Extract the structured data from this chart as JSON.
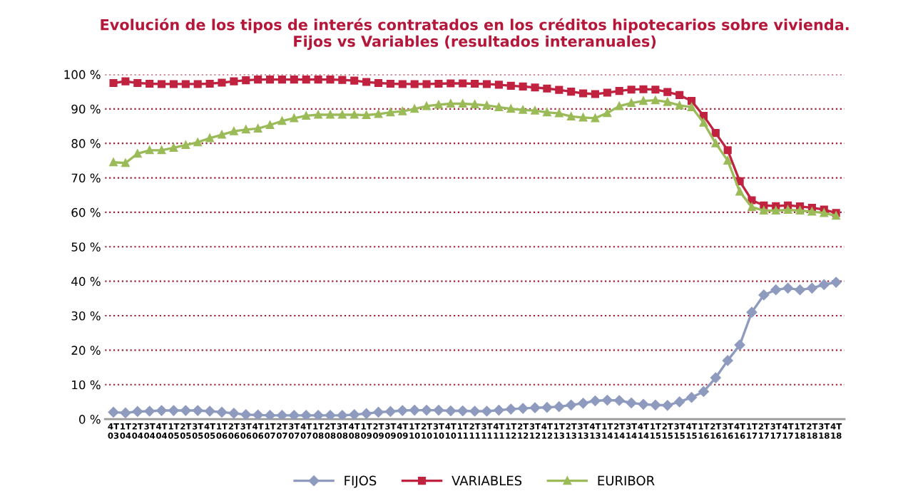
{
  "chart_data": {
    "type": "line",
    "title": "Evolución de los tipos de interés contratados en los créditos hipotecarios sobre vivienda.\nFijos vs Variables (resultados interanuales)",
    "categories": [
      "4T\n03",
      "1T\n04",
      "2T\n04",
      "3T\n04",
      "4T\n04",
      "1T\n05",
      "2T\n05",
      "3T\n05",
      "4T\n05",
      "1T\n06",
      "2T\n06",
      "3T\n06",
      "4T\n06",
      "1T\n07",
      "2T\n07",
      "3T\n07",
      "4T\n07",
      "1T\n08",
      "2T\n08",
      "3T\n08",
      "4T\n08",
      "1T\n09",
      "2T\n09",
      "3T\n09",
      "4T\n09",
      "1T\n10",
      "2T\n10",
      "3T\n10",
      "4T\n10",
      "1T\n11",
      "2T\n11",
      "3T\n11",
      "4T\n11",
      "1T\n12",
      "2T\n12",
      "3T\n12",
      "4T\n12",
      "1T\n13",
      "2T\n13",
      "3T\n13",
      "4T\n13",
      "1T\n14",
      "2T\n14",
      "3T\n14",
      "4T\n14",
      "1T\n15",
      "2T\n15",
      "3T\n15",
      "4T\n15",
      "1T\n16",
      "2T\n16",
      "3T\n16",
      "4T\n16",
      "1T\n17",
      "2T\n17",
      "3T\n17",
      "4T\n17",
      "1T\n18",
      "2T\n18",
      "3T\n18",
      "4T\n18"
    ],
    "series": [
      {
        "name": "FIJOS",
        "color": "#8e9bbf",
        "marker": "diamond",
        "values": [
          2,
          1.8,
          2.2,
          2.3,
          2.5,
          2.5,
          2.5,
          2.5,
          2.3,
          2,
          1.7,
          1.3,
          1.2,
          1.1,
          1.1,
          1.1,
          1.1,
          1.1,
          1.1,
          1.1,
          1.3,
          1.6,
          2,
          2.2,
          2.5,
          2.6,
          2.6,
          2.6,
          2.4,
          2.4,
          2.3,
          2.3,
          2.6,
          2.9,
          3.1,
          3.3,
          3.4,
          3.6,
          4.1,
          4.6,
          5.3,
          5.5,
          5.4,
          4.7,
          4.3,
          4.1,
          4,
          5,
          6.3,
          8,
          12,
          17,
          21.5,
          31,
          36,
          37.5,
          38,
          37.5,
          38,
          39,
          39.7
        ]
      },
      {
        "name": "VARIABLES",
        "color": "#c0223f",
        "marker": "square",
        "values": [
          97.5,
          98,
          97.5,
          97.3,
          97.2,
          97.2,
          97.2,
          97.2,
          97.3,
          97.6,
          98,
          98.3,
          98.5,
          98.5,
          98.5,
          98.5,
          98.5,
          98.5,
          98.5,
          98.4,
          98.2,
          97.8,
          97.5,
          97.3,
          97.2,
          97.2,
          97.2,
          97.3,
          97.4,
          97.4,
          97.3,
          97.2,
          97,
          96.7,
          96.5,
          96.2,
          95.9,
          95.5,
          95,
          94.5,
          94.3,
          94.7,
          95.2,
          95.6,
          95.7,
          95.6,
          94.9,
          94,
          92.3,
          88,
          83,
          78,
          69,
          63.5,
          62,
          61.8,
          62,
          61.7,
          61.3,
          60.8,
          59.8
        ]
      },
      {
        "name": "EURIBOR",
        "color": "#9bbb59",
        "marker": "triangle",
        "values": [
          74.5,
          74.3,
          77,
          78,
          78,
          78.7,
          79.5,
          80.3,
          81.5,
          82.5,
          83.5,
          84,
          84.3,
          85.3,
          86.5,
          87.3,
          88,
          88.3,
          88.3,
          88.3,
          88.3,
          88.2,
          88.5,
          89,
          89.3,
          90,
          90.8,
          91.2,
          91.5,
          91.5,
          91.3,
          91,
          90.5,
          90,
          89.7,
          89.5,
          89,
          88.7,
          87.8,
          87.5,
          87.3,
          88.8,
          90.8,
          91.7,
          92.3,
          92.5,
          92,
          91,
          90.5,
          86,
          80,
          75,
          66,
          61.5,
          60.5,
          60.5,
          60.7,
          60.5,
          60.2,
          59.8,
          59
        ]
      }
    ],
    "ylim": [
      0,
      100
    ],
    "yticks": [
      {
        "value": 0,
        "label": "0 %"
      },
      {
        "value": 10,
        "label": "10 %"
      },
      {
        "value": 20,
        "label": "20 %"
      },
      {
        "value": 30,
        "label": "30 %"
      },
      {
        "value": 40,
        "label": "40 %"
      },
      {
        "value": 50,
        "label": "50 %"
      },
      {
        "value": 60,
        "label": "60 %"
      },
      {
        "value": 70,
        "label": "70 %"
      },
      {
        "value": 80,
        "label": "80 %"
      },
      {
        "value": 90,
        "label": "90 %"
      },
      {
        "value": 100,
        "label": "100 %"
      }
    ],
    "grid": "y",
    "legend": "bottom"
  }
}
